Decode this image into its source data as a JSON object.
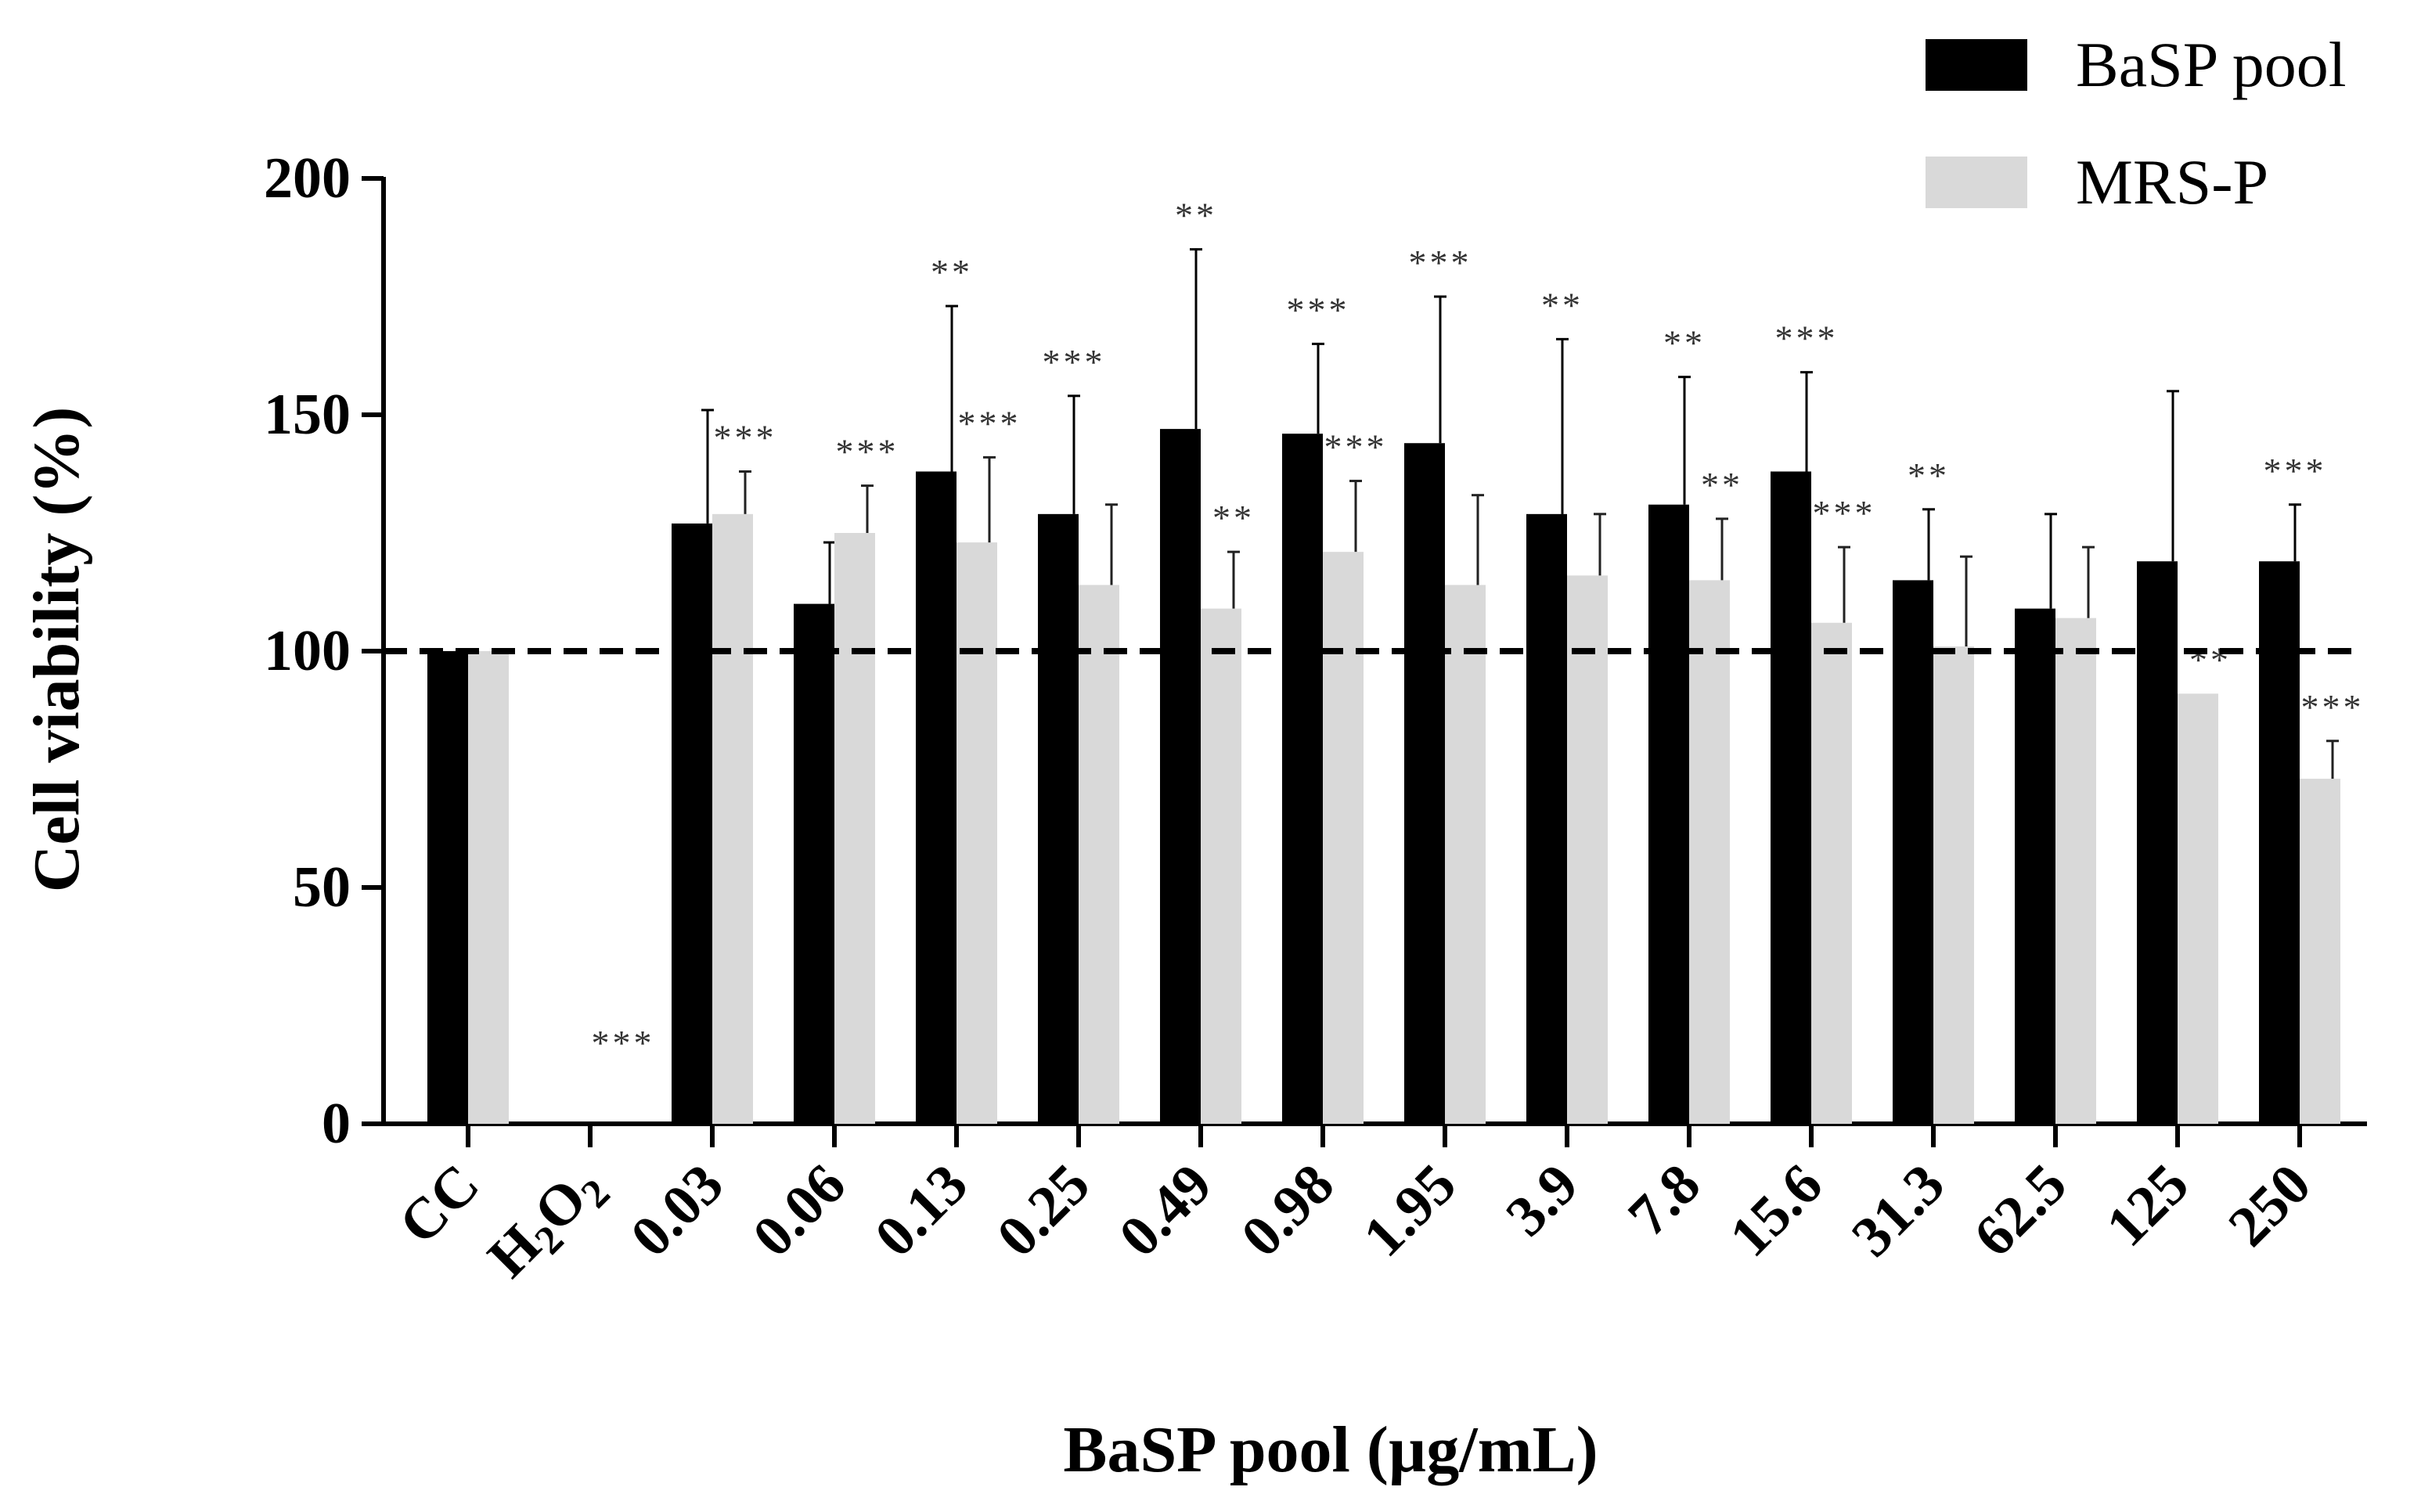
{
  "chart_data": {
    "type": "bar",
    "title": "",
    "xlabel": "BaSP pool (µg/mL)",
    "ylabel": "Cell viability (%)",
    "ylim": [
      0,
      200
    ],
    "yticks": [
      "0",
      "50",
      "100",
      "150",
      "200"
    ],
    "reference_line": {
      "value": 100,
      "style": "dashed"
    },
    "legend_position": "top-right",
    "categories": [
      {
        "label": "CC"
      },
      {
        "label": "H",
        "sub": "2",
        "label2": "O",
        "sub2": "2"
      },
      {
        "label": "0.03"
      },
      {
        "label": "0.06"
      },
      {
        "label": "0.13"
      },
      {
        "label": "0.25"
      },
      {
        "label": "0.49"
      },
      {
        "label": "0.98"
      },
      {
        "label": "1.95"
      },
      {
        "label": "3.9"
      },
      {
        "label": "7.8"
      },
      {
        "label": "15.6"
      },
      {
        "label": "31.3"
      },
      {
        "label": "62.5"
      },
      {
        "label": "125"
      },
      {
        "label": "250"
      }
    ],
    "series": [
      {
        "name": "BaSP pool",
        "color": "#000000",
        "values": [
          100,
          0,
          127,
          110,
          138,
          129,
          147,
          146,
          144,
          129,
          131,
          138,
          115,
          109,
          119,
          119
        ],
        "errors": [
          0,
          0,
          24,
          13,
          35,
          25,
          38,
          19,
          31,
          37,
          27,
          21,
          15,
          20,
          36,
          12
        ],
        "significance": [
          "",
          "",
          "",
          "",
          "**",
          "***",
          "**",
          "***",
          "***",
          "**",
          "**",
          "***",
          "**",
          "",
          "",
          "***"
        ]
      },
      {
        "name": "MRS-P",
        "color": "#d9d9d9",
        "values": [
          100,
          0,
          129,
          125,
          123,
          114,
          109,
          121,
          114,
          116,
          115,
          106,
          101,
          107,
          91,
          73
        ],
        "errors": [
          0,
          0,
          9,
          10,
          18,
          17,
          12,
          15,
          19,
          13,
          13,
          16,
          19,
          15,
          0,
          8
        ],
        "significance": [
          "",
          "***",
          "***",
          "***",
          "***",
          "",
          "**",
          "***",
          "",
          "",
          "**",
          "***",
          "",
          "",
          "**",
          "***"
        ]
      }
    ]
  }
}
